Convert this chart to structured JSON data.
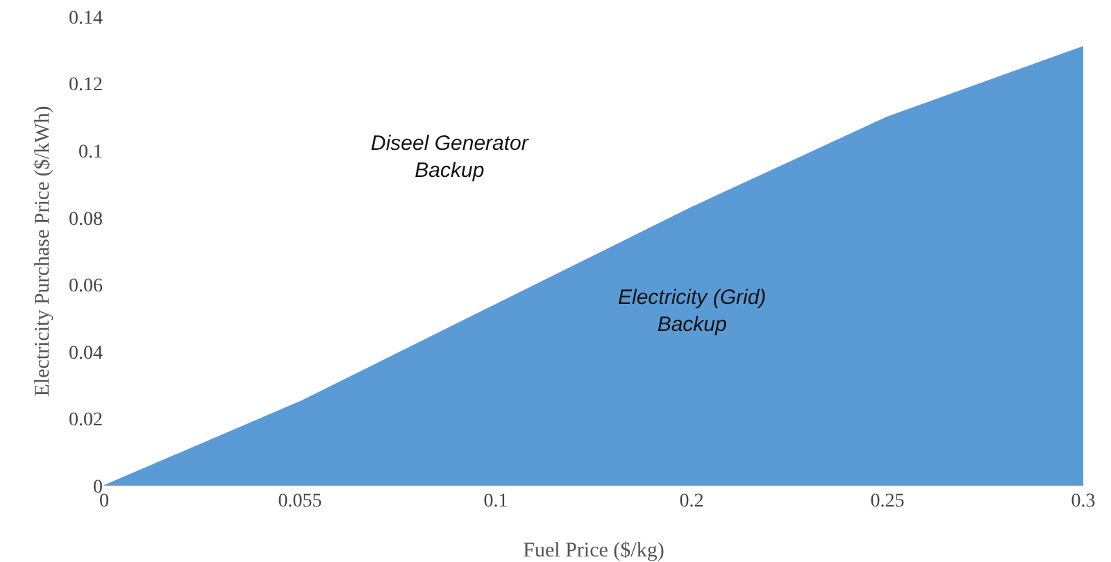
{
  "chart_data": {
    "type": "area",
    "xlabel": "Fuel Price ($/kg)",
    "ylabel": "Electricity Purchase Price ($/kWh)",
    "categories": [
      "0",
      "0.055",
      "0.1",
      "0.2",
      "0.25",
      "0.3"
    ],
    "series": [
      {
        "color": "#5b9bd5",
        "values": [
          0,
          0.025,
          0.054,
          0.083,
          0.11,
          0.131
        ]
      }
    ],
    "ylim": [
      0,
      0.14
    ],
    "yticks": [
      0,
      0.02,
      0.04,
      0.06,
      0.08,
      0.1,
      0.12,
      0.14
    ],
    "annotations": [
      "Diseel Generator\nBackup",
      "Electricity (Grid)\nBackup"
    ]
  }
}
